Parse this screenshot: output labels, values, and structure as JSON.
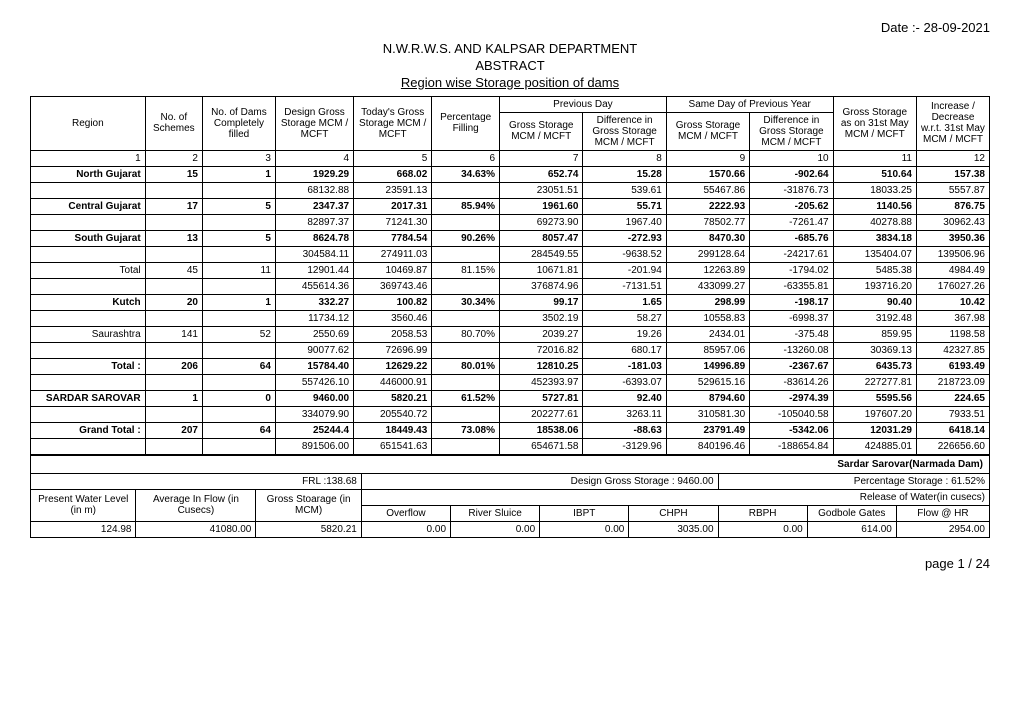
{
  "date_label": "Date :- 28-09-2021",
  "title1": "N.W.R.W.S. AND KALPSAR DEPARTMENT",
  "title2": "ABSTRACT",
  "title3": "Region wise Storage position of dams",
  "headers": {
    "region": "Region",
    "no_schemes": "No. of Schemes",
    "no_dams_filled": "No. of Dams Completely filled",
    "design_gross": "Design Gross Storage MCM / MCFT",
    "today_gross": "Today's Gross Storage MCM / MCFT",
    "pct_filling": "Percentage Filling",
    "prev_day": "Previous Day",
    "same_day_prev_year": "Same Day of Previous Year",
    "gross_31may": "Gross Storage as on 31st May MCM / MCFT",
    "incdec": "Increase / Decrease w.r.t. 31st May MCM / MCFT",
    "gross_storage_mcm": "Gross Storage MCM / MCFT",
    "diff_gross_mcm": "Difference in Gross Storage MCM / MCFT"
  },
  "colnums": [
    "1",
    "2",
    "3",
    "4",
    "5",
    "6",
    "7",
    "8",
    "9",
    "10",
    "11",
    "12"
  ],
  "rows": [
    {
      "bold": true,
      "region": "North Gujarat",
      "c2": "15",
      "c3": "1",
      "c4": "1929.29",
      "c5": "668.02",
      "c6": "34.63%",
      "c7": "652.74",
      "c8": "15.28",
      "c9": "1570.66",
      "c10": "-902.64",
      "c11": "510.64",
      "c12": "157.38"
    },
    {
      "bold": false,
      "region": "",
      "c2": "",
      "c3": "",
      "c4": "68132.88",
      "c5": "23591.13",
      "c6": "",
      "c7": "23051.51",
      "c8": "539.61",
      "c9": "55467.86",
      "c10": "-31876.73",
      "c11": "18033.25",
      "c12": "5557.87"
    },
    {
      "bold": true,
      "region": "Central Gujarat",
      "c2": "17",
      "c3": "5",
      "c4": "2347.37",
      "c5": "2017.31",
      "c6": "85.94%",
      "c7": "1961.60",
      "c8": "55.71",
      "c9": "2222.93",
      "c10": "-205.62",
      "c11": "1140.56",
      "c12": "876.75"
    },
    {
      "bold": false,
      "region": "",
      "c2": "",
      "c3": "",
      "c4": "82897.37",
      "c5": "71241.30",
      "c6": "",
      "c7": "69273.90",
      "c8": "1967.40",
      "c9": "78502.77",
      "c10": "-7261.47",
      "c11": "40278.88",
      "c12": "30962.43"
    },
    {
      "bold": true,
      "region": "South Gujarat",
      "c2": "13",
      "c3": "5",
      "c4": "8624.78",
      "c5": "7784.54",
      "c6": "90.26%",
      "c7": "8057.47",
      "c8": "-272.93",
      "c9": "8470.30",
      "c10": "-685.76",
      "c11": "3834.18",
      "c12": "3950.36"
    },
    {
      "bold": false,
      "region": "",
      "c2": "",
      "c3": "",
      "c4": "304584.11",
      "c5": "274911.03",
      "c6": "",
      "c7": "284549.55",
      "c8": "-9638.52",
      "c9": "299128.64",
      "c10": "-24217.61",
      "c11": "135404.07",
      "c12": "139506.96"
    },
    {
      "bold": false,
      "region": "Total",
      "c2": "45",
      "c3": "11",
      "c4": "12901.44",
      "c5": "10469.87",
      "c6": "81.15%",
      "c7": "10671.81",
      "c8": "-201.94",
      "c9": "12263.89",
      "c10": "-1794.02",
      "c11": "5485.38",
      "c12": "4984.49"
    },
    {
      "bold": false,
      "region": "",
      "c2": "",
      "c3": "",
      "c4": "455614.36",
      "c5": "369743.46",
      "c6": "",
      "c7": "376874.96",
      "c8": "-7131.51",
      "c9": "433099.27",
      "c10": "-63355.81",
      "c11": "193716.20",
      "c12": "176027.26"
    },
    {
      "bold": true,
      "region": "Kutch",
      "c2": "20",
      "c3": "1",
      "c4": "332.27",
      "c5": "100.82",
      "c6": "30.34%",
      "c7": "99.17",
      "c8": "1.65",
      "c9": "298.99",
      "c10": "-198.17",
      "c11": "90.40",
      "c12": "10.42"
    },
    {
      "bold": false,
      "region": "",
      "c2": "",
      "c3": "",
      "c4": "11734.12",
      "c5": "3560.46",
      "c6": "",
      "c7": "3502.19",
      "c8": "58.27",
      "c9": "10558.83",
      "c10": "-6998.37",
      "c11": "3192.48",
      "c12": "367.98"
    },
    {
      "bold": false,
      "region": "Saurashtra",
      "c2": "141",
      "c3": "52",
      "c4": "2550.69",
      "c5": "2058.53",
      "c6": "80.70%",
      "c7": "2039.27",
      "c8": "19.26",
      "c9": "2434.01",
      "c10": "-375.48",
      "c11": "859.95",
      "c12": "1198.58"
    },
    {
      "bold": false,
      "region": "",
      "c2": "",
      "c3": "",
      "c4": "90077.62",
      "c5": "72696.99",
      "c6": "",
      "c7": "72016.82",
      "c8": "680.17",
      "c9": "85957.06",
      "c10": "-13260.08",
      "c11": "30369.13",
      "c12": "42327.85"
    },
    {
      "bold": true,
      "region": "Total :",
      "c2": "206",
      "c3": "64",
      "c4": "15784.40",
      "c5": "12629.22",
      "c6": "80.01%",
      "c7": "12810.25",
      "c8": "-181.03",
      "c9": "14996.89",
      "c10": "-2367.67",
      "c11": "6435.73",
      "c12": "6193.49"
    },
    {
      "bold": false,
      "region": "",
      "c2": "",
      "c3": "",
      "c4": "557426.10",
      "c5": "446000.91",
      "c6": "",
      "c7": "452393.97",
      "c8": "-6393.07",
      "c9": "529615.16",
      "c10": "-83614.26",
      "c11": "227277.81",
      "c12": "218723.09"
    },
    {
      "bold": true,
      "region": "SARDAR SAROVAR",
      "c2": "1",
      "c3": "0",
      "c4": "9460.00",
      "c5": "5820.21",
      "c6": "61.52%",
      "c7": "5727.81",
      "c8": "92.40",
      "c9": "8794.60",
      "c10": "-2974.39",
      "c11": "5595.56",
      "c12": "224.65"
    },
    {
      "bold": false,
      "region": "",
      "c2": "",
      "c3": "",
      "c4": "334079.90",
      "c5": "205540.72",
      "c6": "",
      "c7": "202277.61",
      "c8": "3263.11",
      "c9": "310581.30",
      "c10": "-105040.58",
      "c11": "197607.20",
      "c12": "7933.51"
    },
    {
      "bold": true,
      "region": "Grand Total :",
      "c2": "207",
      "c3": "64",
      "c4": "25244.4",
      "c5": "18449.43",
      "c6": "73.08%",
      "c7": "18538.06",
      "c8": "-88.63",
      "c9": "23791.49",
      "c10": "-5342.06",
      "c11": "12031.29",
      "c12": "6418.14"
    },
    {
      "bold": false,
      "region": "",
      "c2": "",
      "c3": "",
      "c4": "891506.00",
      "c5": "651541.63",
      "c6": "",
      "c7": "654671.58",
      "c8": "-3129.96",
      "c9": "840196.46",
      "c10": "-188654.84",
      "c11": "424885.01",
      "c12": "226656.60"
    }
  ],
  "ss_narmada": "Sardar Sarovar(Narmada Dam)",
  "frl": "FRL :138.68",
  "design_gross_label": "Design Gross Storage : 9460.00",
  "pct_storage_label": "Percentage Storage : 61.52%",
  "present_wl": "Present Water Level (in m)",
  "avg_inflow": "Average In Flow (in Cusecs)",
  "gross_stoarage": "Gross Stoarage (in MCM)",
  "release_label": "Release of Water(in cusecs)",
  "overflow": "Overflow",
  "river_sluice": "River Sluice",
  "ibpt": "IBPT",
  "chph": "CHPH",
  "rbph": "RBPH",
  "godbole": "Godbole Gates",
  "flowhr": "Flow @ HR",
  "ss_row": {
    "wl": "124.98",
    "inflow": "41080.00",
    "storage": "5820.21",
    "overflow": "0.00",
    "sluice": "0.00",
    "ibpt": "0.00",
    "chph": "3035.00",
    "rbph": "0.00",
    "godbole": "614.00",
    "flowhr": "2954.00"
  },
  "page": "page 1 / 24"
}
